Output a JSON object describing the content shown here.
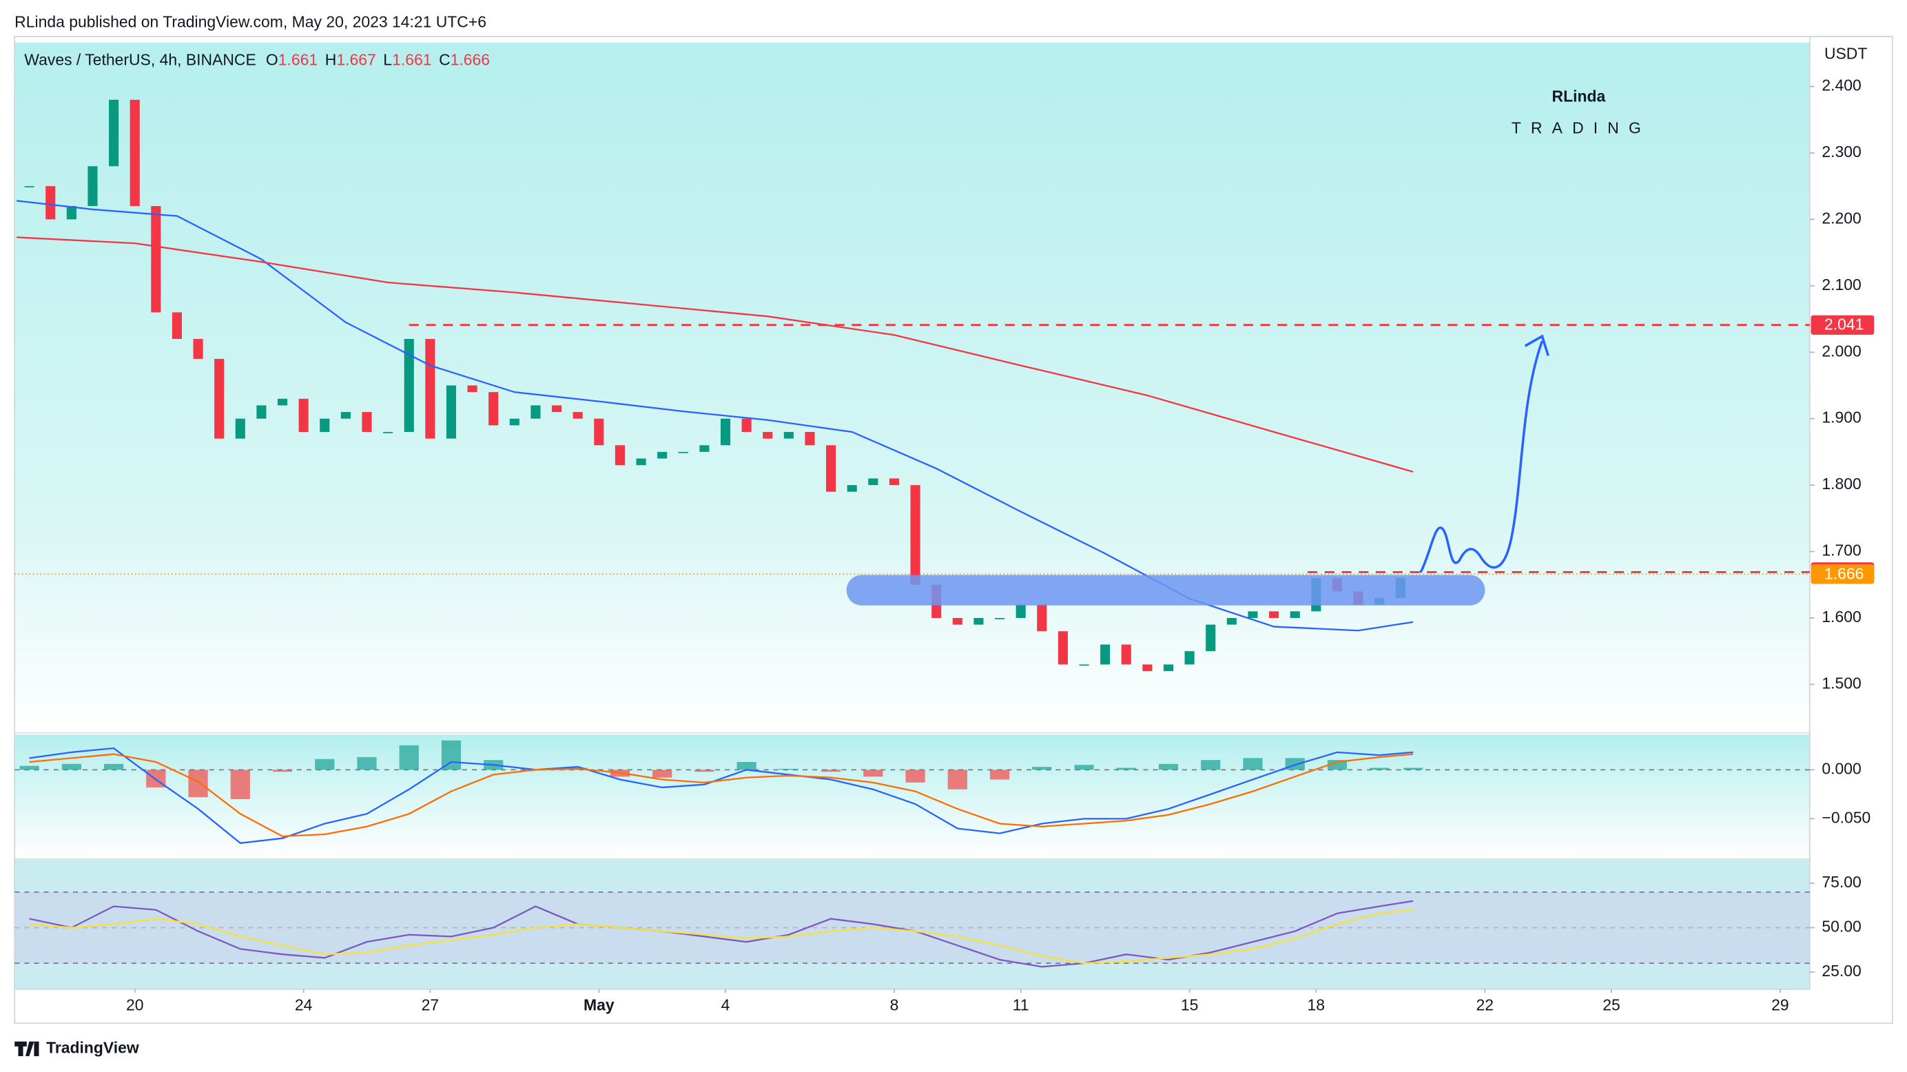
{
  "header": {
    "published": "RLinda published on TradingView.com, May 20, 2023 14:21 UTC+6"
  },
  "logo": {
    "name": "RLinda",
    "tagline": "TRADING"
  },
  "footer": {
    "brand": "TradingView"
  },
  "chart_data": [
    {
      "type": "candlestick",
      "title": "Waves / TetherUS, 4h, BINANCE",
      "ohlc": [
        {
          "label": "O",
          "value": 1.661
        },
        {
          "label": "H",
          "value": 1.667
        },
        {
          "label": "L",
          "value": 1.661
        },
        {
          "label": "C",
          "value": 1.666
        }
      ],
      "y_unit": "USDT",
      "up_color": "#089981",
      "down_color": "#f23645",
      "x": [
        17.5,
        18,
        18.5,
        19,
        19.5,
        20,
        20.5,
        21,
        21.5,
        22,
        22.5,
        23,
        23.5,
        24,
        24.5,
        25,
        25.5,
        26,
        26.5,
        27,
        27.5,
        28,
        28.5,
        29,
        29.5,
        30,
        30.5,
        31,
        31.5,
        32,
        32.5,
        33,
        33.5,
        34,
        34.5,
        35,
        35.5,
        36,
        36.5,
        37,
        37.5,
        38,
        38.5,
        39,
        39.5,
        40,
        40.5,
        41,
        41.5,
        42,
        42.5,
        43,
        43.5,
        44,
        44.5,
        45,
        45.5,
        46,
        46.5,
        47,
        47.5,
        48,
        48.5,
        49,
        49.5,
        50
      ],
      "values": [
        2.25,
        2.2,
        2.22,
        2.28,
        2.38,
        2.22,
        2.06,
        2.02,
        1.99,
        1.87,
        1.9,
        1.92,
        1.93,
        1.88,
        1.9,
        1.91,
        1.88,
        1.88,
        2.02,
        1.87,
        1.95,
        1.94,
        1.89,
        1.9,
        1.92,
        1.91,
        1.9,
        1.86,
        1.83,
        1.84,
        1.85,
        1.85,
        1.86,
        1.9,
        1.88,
        1.87,
        1.88,
        1.86,
        1.79,
        1.8,
        1.81,
        1.8,
        1.65,
        1.6,
        1.59,
        1.6,
        1.6,
        1.62,
        1.58,
        1.53,
        1.53,
        1.56,
        1.53,
        1.52,
        1.53,
        1.55,
        1.59,
        1.6,
        1.61,
        1.6,
        1.61,
        1.66,
        1.64,
        1.62,
        1.63,
        1.66
      ],
      "series": [
        {
          "color": "#2962ff",
          "x": [
            17.2,
            19,
            21,
            23,
            25,
            27,
            29,
            31,
            33,
            35,
            37,
            39,
            41,
            43,
            45,
            47,
            49,
            50.3
          ],
          "values": [
            2.228,
            2.215,
            2.205,
            2.14,
            2.045,
            1.98,
            1.94,
            1.926,
            1.911,
            1.898,
            1.88,
            1.825,
            1.76,
            1.697,
            1.629,
            1.587,
            1.581,
            1.594
          ]
        },
        {
          "color": "#f23645",
          "x": [
            17.2,
            20,
            23,
            26,
            29,
            32,
            35,
            38,
            41,
            44,
            47,
            50.3
          ],
          "values": [
            2.173,
            2.164,
            2.136,
            2.105,
            2.09,
            2.072,
            2.054,
            2.026,
            1.98,
            1.935,
            1.88,
            1.82
          ]
        }
      ],
      "levels": [
        {
          "value": 2.041,
          "color": "#f23645",
          "from": 26.5
        },
        {
          "value": 1.669,
          "color": "#f23645",
          "from": 47.8
        },
        {
          "value": 1.666,
          "color": "#ff9800"
        }
      ],
      "level_labels": true,
      "ylim": [
        1.43,
        2.466
      ],
      "yticks": [
        {
          "value": 1.5,
          "label": "1.500"
        },
        {
          "value": 1.6,
          "label": "1.600"
        },
        {
          "value": 1.7,
          "label": "1.700"
        },
        {
          "value": 1.8,
          "label": "1.800"
        },
        {
          "value": 1.9,
          "label": "1.900"
        },
        {
          "value": 2.0,
          "label": "2.000"
        },
        {
          "value": 2.1,
          "label": "2.100"
        },
        {
          "value": 2.2,
          "label": "2.200"
        },
        {
          "value": 2.3,
          "label": "2.300"
        },
        {
          "value": 2.4,
          "label": "2.400"
        }
      ]
    },
    {
      "type": "line",
      "series": [
        {
          "type": "bar",
          "up_color": "#26a69a",
          "down_color": "#ef5350",
          "x": [
            17.5,
            18.5,
            19.5,
            20.5,
            21.5,
            22.5,
            23.5,
            24.5,
            25.5,
            26.5,
            27.5,
            28.5,
            29.5,
            30.5,
            31.5,
            32.5,
            33.5,
            34.5,
            35.5,
            36.5,
            37.5,
            38.5,
            39.5,
            40.5,
            41.5,
            42.5,
            43.5,
            44.5,
            45.5,
            46.5,
            47.5,
            48.5,
            49.5,
            50.3
          ],
          "values": [
            0.004,
            0.006,
            0.006,
            -0.018,
            -0.028,
            -0.03,
            -0.002,
            0.011,
            0.013,
            0.025,
            0.03,
            0.01,
            0.0,
            0.002,
            -0.007,
            -0.008,
            -0.002,
            0.008,
            0.001,
            -0.002,
            -0.007,
            -0.013,
            -0.02,
            -0.01,
            0.003,
            0.005,
            0.002,
            0.006,
            0.01,
            0.012,
            0.012,
            0.01,
            0.002,
            0.002
          ]
        },
        {
          "color": "#2962ff",
          "x": [
            17.5,
            18.5,
            19.5,
            20.5,
            21.5,
            22.5,
            23.5,
            24.5,
            25.5,
            26.5,
            27.5,
            28.5,
            29.5,
            30.5,
            31.5,
            32.5,
            33.5,
            34.5,
            35.5,
            36.5,
            37.5,
            38.5,
            39.5,
            40.5,
            41.5,
            42.5,
            43.5,
            44.5,
            45.5,
            46.5,
            47.5,
            48.5,
            49.5,
            50.3
          ],
          "values": [
            0.012,
            0.018,
            0.022,
            -0.01,
            -0.04,
            -0.075,
            -0.07,
            -0.055,
            -0.045,
            -0.02,
            0.008,
            0.005,
            0.0,
            0.003,
            -0.01,
            -0.018,
            -0.015,
            0.0,
            -0.005,
            -0.01,
            -0.02,
            -0.035,
            -0.06,
            -0.065,
            -0.055,
            -0.05,
            -0.05,
            -0.04,
            -0.025,
            -0.01,
            0.005,
            0.018,
            0.015,
            0.018
          ]
        },
        {
          "color": "#ff6d00",
          "x": [
            17.5,
            18.5,
            19.5,
            20.5,
            21.5,
            22.5,
            23.5,
            24.5,
            25.5,
            26.5,
            27.5,
            28.5,
            29.5,
            30.5,
            31.5,
            32.5,
            33.5,
            34.5,
            35.5,
            36.5,
            37.5,
            38.5,
            39.5,
            40.5,
            41.5,
            42.5,
            43.5,
            44.5,
            45.5,
            46.5,
            47.5,
            48.5,
            49.5,
            50.3
          ],
          "values": [
            0.008,
            0.012,
            0.016,
            0.008,
            -0.012,
            -0.045,
            -0.068,
            -0.066,
            -0.058,
            -0.045,
            -0.022,
            -0.005,
            0.0,
            0.001,
            -0.003,
            -0.01,
            -0.013,
            -0.008,
            -0.006,
            -0.008,
            -0.013,
            -0.022,
            -0.04,
            -0.055,
            -0.058,
            -0.055,
            -0.052,
            -0.046,
            -0.035,
            -0.022,
            -0.007,
            0.008,
            0.013,
            0.016
          ]
        }
      ],
      "levels": [
        {
          "value": 0,
          "color": "#787b86"
        }
      ],
      "ylim": [
        -0.091,
        0.036
      ],
      "yticks": [
        {
          "value": 0,
          "label": "0.000"
        },
        {
          "value": -0.05,
          "label": "−0.050"
        }
      ]
    },
    {
      "type": "line",
      "series": [
        {
          "color": "#7e57c2",
          "x": [
            17.5,
            18.5,
            19.5,
            20.5,
            21.5,
            22.5,
            23.5,
            24.5,
            25.5,
            26.5,
            27.5,
            28.5,
            29.5,
            30.5,
            31.5,
            32.5,
            33.5,
            34.5,
            35.5,
            36.5,
            37.5,
            38.5,
            39.5,
            40.5,
            41.5,
            42.5,
            43.5,
            44.5,
            45.5,
            46.5,
            47.5,
            48.5,
            49.5,
            50.3
          ],
          "values": [
            55,
            50,
            62,
            60,
            48,
            38,
            35,
            33,
            42,
            46,
            45,
            50,
            62,
            52,
            50,
            48,
            45,
            42,
            46,
            55,
            52,
            48,
            40,
            32,
            28,
            30,
            35,
            32,
            36,
            42,
            48,
            58,
            62,
            65
          ]
        },
        {
          "color": "#f7e13a",
          "x": [
            17.5,
            18.5,
            19.5,
            20.5,
            21.5,
            22.5,
            23.5,
            24.5,
            25.5,
            26.5,
            27.5,
            28.5,
            29.5,
            30.5,
            31.5,
            32.5,
            33.5,
            34.5,
            35.5,
            36.5,
            37.5,
            38.5,
            39.5,
            40.5,
            41.5,
            42.5,
            43.5,
            44.5,
            45.5,
            46.5,
            47.5,
            48.5,
            49.5,
            50.3
          ],
          "values": [
            52,
            50,
            52,
            55,
            52,
            45,
            40,
            35,
            36,
            40,
            43,
            46,
            50,
            52,
            50,
            48,
            46,
            44,
            45,
            48,
            50,
            48,
            45,
            40,
            34,
            30,
            31,
            33,
            35,
            38,
            44,
            52,
            58,
            60
          ]
        }
      ],
      "levels": [
        {
          "value": 70,
          "color": "#787b86"
        },
        {
          "value": 50,
          "color": "#b2b5be"
        },
        {
          "value": 30,
          "color": "#787b86"
        }
      ],
      "ylim": [
        15.4,
        88.7
      ],
      "yticks": [
        {
          "value": 25,
          "label": "25.00"
        },
        {
          "value": 50,
          "label": "50.00"
        },
        {
          "value": 75,
          "label": "75.00"
        }
      ],
      "xlim": [
        17.15,
        59.7
      ],
      "xticks": [
        {
          "value": 20,
          "label": "20"
        },
        {
          "value": 24,
          "label": "24"
        },
        {
          "value": 27,
          "label": "27"
        },
        {
          "value": 31,
          "label": "May"
        },
        {
          "value": 34,
          "label": "4"
        },
        {
          "value": 38,
          "label": "8"
        },
        {
          "value": 41,
          "label": "11"
        },
        {
          "value": 45,
          "label": "15"
        },
        {
          "value": 48,
          "label": "18"
        },
        {
          "value": 52,
          "label": "22"
        },
        {
          "value": 55,
          "label": "25"
        },
        {
          "value": 59,
          "label": "29"
        }
      ]
    }
  ]
}
